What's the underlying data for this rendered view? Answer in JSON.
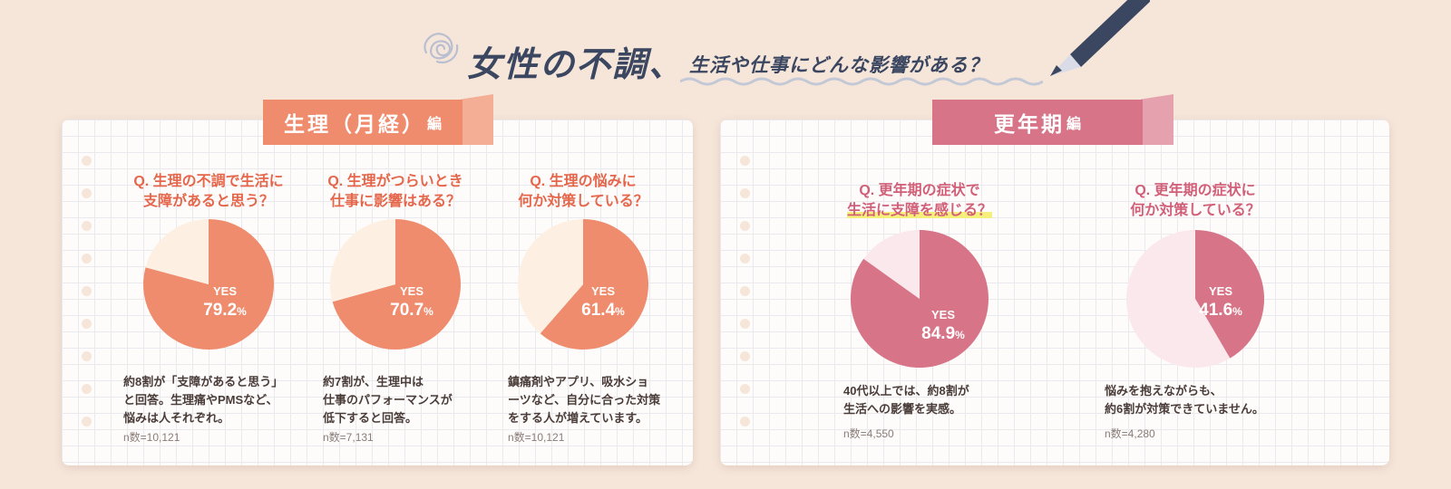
{
  "header": {
    "title_main": "女性の不調、",
    "title_sub": "生活や仕事にどんな影響がある？"
  },
  "sections": [
    {
      "label": "生理（月経）",
      "suffix": "編"
    },
    {
      "label": "更年期",
      "suffix": "編"
    }
  ],
  "colors": {
    "menstrual_yes": "#ef8c6e",
    "menstrual_no": "#fdf0e3",
    "menopause_yes": "#d77487",
    "menopause_no": "#fbe8ec"
  },
  "yes_label": "YES",
  "chart_data": [
    {
      "type": "pie",
      "section": "生理（月経）編",
      "question": [
        "Q. 生理の不調で生活に",
        "支障があると思う？"
      ],
      "slices": [
        {
          "label": "YES",
          "value": 79.2
        },
        {
          "label": "",
          "value": 20.8
        }
      ],
      "value_text": "79.2",
      "unit": "%",
      "description": [
        "約8割が「支障があると思う」",
        "と回答。生理痛やPMSなど、",
        "悩みは人それぞれ。"
      ],
      "n": "n数=10,121"
    },
    {
      "type": "pie",
      "section": "生理（月経）編",
      "question": [
        "Q. 生理がつらいとき",
        "仕事に影響はある？"
      ],
      "slices": [
        {
          "label": "YES",
          "value": 70.7
        },
        {
          "label": "",
          "value": 29.3
        }
      ],
      "value_text": "70.7",
      "unit": "%",
      "description": [
        "約7割が、生理中は",
        "仕事のパフォーマンスが",
        "低下すると回答。"
      ],
      "n": "n数=7,131"
    },
    {
      "type": "pie",
      "section": "生理（月経）編",
      "question": [
        "Q. 生理の悩みに",
        "何か対策している？"
      ],
      "slices": [
        {
          "label": "YES",
          "value": 61.4
        },
        {
          "label": "",
          "value": 38.6
        }
      ],
      "value_text": "61.4",
      "unit": "%",
      "description": [
        "鎮痛剤やアプリ、吸水ショ",
        "ーツなど、自分に合った対策",
        "をする人が増えています。"
      ],
      "n": "n数=10,121"
    },
    {
      "type": "pie",
      "section": "更年期編",
      "question": [
        "Q. 更年期の症状で",
        "生活に支障を感じる？"
      ],
      "slices": [
        {
          "label": "YES",
          "value": 84.9
        },
        {
          "label": "",
          "value": 15.1
        }
      ],
      "value_text": "84.9",
      "unit": "%",
      "description": [
        "40代以上では、約8割が",
        "生活への影響を実感。"
      ],
      "n": "n数=4,550"
    },
    {
      "type": "pie",
      "section": "更年期編",
      "question": [
        "Q. 更年期の症状に",
        "何か対策している？"
      ],
      "slices": [
        {
          "label": "YES",
          "value": 41.6
        },
        {
          "label": "",
          "value": 58.4
        }
      ],
      "value_text": "41.6",
      "unit": "%",
      "description": [
        "悩みを抱えながらも、",
        "約6割が対策できていません。"
      ],
      "n": "n数=4,280"
    }
  ]
}
